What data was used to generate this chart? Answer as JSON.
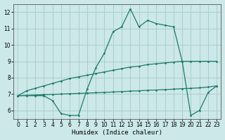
{
  "xlabel": "Humidex (Indice chaleur)",
  "bg_color": "#cce8e8",
  "grid_color": "#aacece",
  "line_color": "#1a7a6a",
  "xlim": [
    -0.5,
    23.5
  ],
  "ylim": [
    5.5,
    12.5
  ],
  "xticks": [
    0,
    1,
    2,
    3,
    4,
    5,
    6,
    7,
    8,
    9,
    10,
    11,
    12,
    13,
    14,
    15,
    16,
    17,
    18,
    19,
    20,
    21,
    22,
    23
  ],
  "yticks": [
    6,
    7,
    8,
    9,
    10,
    11,
    12
  ],
  "line1_x": [
    0,
    1,
    2,
    3,
    4,
    5,
    6,
    7,
    8,
    9,
    10,
    11,
    12,
    13,
    14,
    15,
    16,
    17,
    18,
    19,
    20,
    21,
    22,
    23
  ],
  "line1_y": [
    6.9,
    6.9,
    6.9,
    6.9,
    6.6,
    5.8,
    5.7,
    5.7,
    7.3,
    8.6,
    9.5,
    10.8,
    11.1,
    12.2,
    11.1,
    11.5,
    11.3,
    11.2,
    11.1,
    9.0,
    5.7,
    6.0,
    7.1,
    7.5
  ],
  "line2_x": [
    0,
    1,
    2,
    3,
    4,
    5,
    6,
    7,
    8,
    9,
    10,
    11,
    12,
    13,
    14,
    15,
    16,
    17,
    18,
    19,
    20,
    21,
    22,
    23
  ],
  "line2_y": [
    6.9,
    7.2,
    7.35,
    7.5,
    7.65,
    7.8,
    7.95,
    8.05,
    8.15,
    8.25,
    8.35,
    8.45,
    8.55,
    8.65,
    8.7,
    8.8,
    8.85,
    8.9,
    8.95,
    9.0,
    9.0,
    9.0,
    9.0,
    9.0
  ],
  "line3_x": [
    0,
    1,
    2,
    3,
    4,
    5,
    6,
    7,
    8,
    9,
    10,
    11,
    12,
    13,
    14,
    15,
    16,
    17,
    18,
    19,
    20,
    21,
    22,
    23
  ],
  "line3_y": [
    6.9,
    6.92,
    6.94,
    6.96,
    6.98,
    7.0,
    7.02,
    7.04,
    7.06,
    7.08,
    7.1,
    7.13,
    7.15,
    7.18,
    7.2,
    7.23,
    7.25,
    7.27,
    7.3,
    7.33,
    7.35,
    7.38,
    7.43,
    7.5
  ]
}
